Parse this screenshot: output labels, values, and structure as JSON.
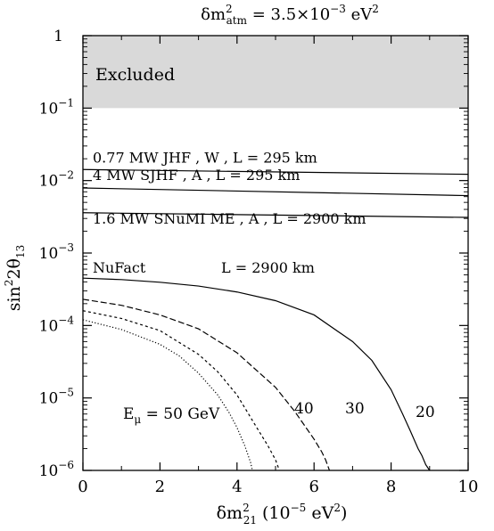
{
  "chart_data": {
    "type": "line",
    "title": {
      "main": "δm",
      "sup": "2",
      "sub": "atm",
      "rest": " = 3.5×10",
      "exp": "−3",
      "unit": " eV",
      "unit_exp": "2"
    },
    "xlabel": {
      "main": "δm",
      "sup": "2",
      "sub": "21",
      "rest": "  (10",
      "exp": "−5",
      "unit": " eV",
      "unit_exp": "2",
      "close": ")"
    },
    "ylabel": {
      "main": "sin",
      "sup": "2",
      "rest": "2θ",
      "sub": "13"
    },
    "xlim": [
      0,
      10
    ],
    "ylim_log10": [
      -6,
      0
    ],
    "yscale": "log",
    "x_ticks": [
      "0",
      "2",
      "4",
      "6",
      "8",
      "10"
    ],
    "x_tick_values": [
      0,
      2,
      4,
      6,
      8,
      10
    ],
    "y_ticks": [
      {
        "value": 1,
        "base": "1",
        "exp": ""
      },
      {
        "value": 0.1,
        "base": "10",
        "exp": "−1"
      },
      {
        "value": 0.01,
        "base": "10",
        "exp": "−2"
      },
      {
        "value": 0.001,
        "base": "10",
        "exp": "−3"
      },
      {
        "value": 0.0001,
        "base": "10",
        "exp": "−4"
      },
      {
        "value": 1e-05,
        "base": "10",
        "exp": "−5"
      },
      {
        "value": 1e-06,
        "base": "10",
        "exp": "−6"
      }
    ],
    "excluded_region": {
      "label": "Excluded",
      "y_from": 0.1,
      "y_to": 1,
      "color": "#d9d9d9"
    },
    "experiments": [
      {
        "label": "0.77 MW  JHF ,   W ,    L  =  295 km",
        "x": [
          0,
          10
        ],
        "y": [
          0.0142,
          0.0122
        ]
      },
      {
        "label": "4 MW  SJHF ,  A ,   L  =  295 km",
        "x": [
          0,
          10
        ],
        "y": [
          0.0079,
          0.0062
        ]
      },
      {
        "label": "1.6 MW  SNuMI ME ,   A ,    L = 2900 km",
        "x": [
          0,
          10
        ],
        "y": [
          0.0036,
          0.0031
        ]
      }
    ],
    "nufact_label": "NuFact",
    "nufact_baseline": "L = 2900 km",
    "energy_label": {
      "main": "E",
      "sub": "μ",
      "rest": " = 50 GeV"
    },
    "series": [
      {
        "name": "20",
        "dash": "solid",
        "x": [
          0,
          1,
          2,
          3,
          4,
          5,
          6,
          7,
          7.5,
          8,
          8.3,
          8.5,
          8.7,
          8.8,
          8.9,
          9.0
        ],
        "y": [
          0.00045,
          0.00043,
          0.000395,
          0.00035,
          0.00029,
          0.00022,
          0.00014,
          6e-05,
          3.3e-05,
          1.3e-05,
          6e-06,
          3.5e-06,
          2e-06,
          1.6e-06,
          1.2e-06,
          1e-06
        ]
      },
      {
        "name": "30",
        "dash": "dashed",
        "x": [
          0,
          1,
          2,
          3,
          4,
          5,
          5.5,
          6,
          6.2,
          6.3,
          6.4
        ],
        "y": [
          0.00023,
          0.00019,
          0.00014,
          9e-05,
          4.2e-05,
          1.4e-05,
          6.5e-06,
          2.7e-06,
          1.8e-06,
          1.4e-06,
          1e-06
        ]
      },
      {
        "name": "40",
        "dash": "dashed-short",
        "x": [
          0,
          1,
          2,
          3,
          3.5,
          4,
          4.5,
          4.8,
          5.0,
          5.1
        ],
        "y": [
          0.00016,
          0.000125,
          8.5e-05,
          4e-05,
          2.3e-05,
          1.1e-05,
          4e-06,
          2.2e-06,
          1.4e-06,
          1e-06
        ]
      },
      {
        "name": "E_mu = 50 GeV",
        "dash": "dotted",
        "x": [
          0,
          1,
          2,
          2.5,
          3,
          3.5,
          3.8,
          4.0,
          4.2,
          4.35,
          4.4
        ],
        "y": [
          0.00012,
          8.8e-05,
          5.5e-05,
          3.8e-05,
          2.2e-05,
          1.1e-05,
          6.2e-06,
          3.9e-06,
          2.2e-06,
          1.3e-06,
          1e-06
        ]
      }
    ]
  }
}
